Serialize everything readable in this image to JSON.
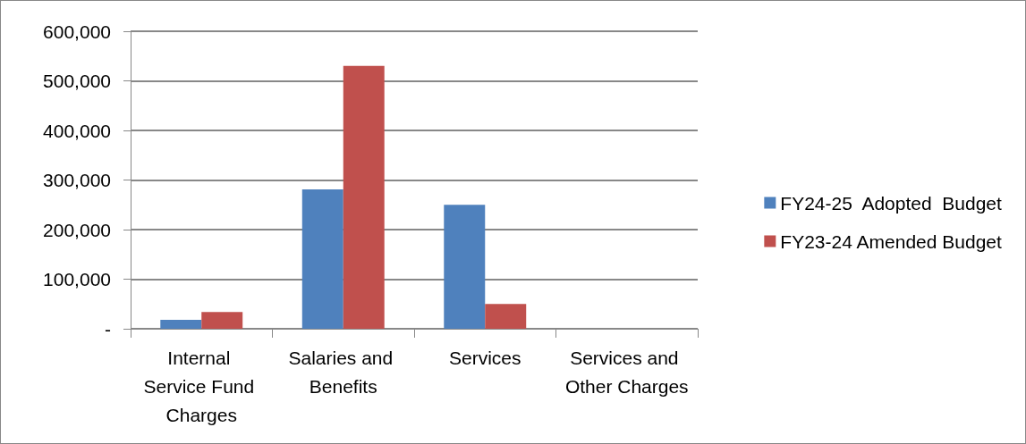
{
  "chart_data": {
    "type": "bar",
    "categories": [
      "Internal Service Fund Charges",
      "Salaries and Benefits",
      "Services",
      "Services and Other Charges"
    ],
    "series": [
      {
        "name": "FY24-25  Adopted  Budget",
        "color": "#4f81bd",
        "values": [
          18000,
          281000,
          250000,
          0
        ]
      },
      {
        "name": "FY23-24 Amended Budget",
        "color": "#c0504d",
        "values": [
          34000,
          530000,
          50000,
          0
        ]
      }
    ],
    "ylim": [
      0,
      600000
    ],
    "yticks": [
      {
        "value": 0,
        "label": "-"
      },
      {
        "value": 100000,
        "label": "100,000"
      },
      {
        "value": 200000,
        "label": "200,000"
      },
      {
        "value": 300000,
        "label": "300,000"
      },
      {
        "value": 400000,
        "label": "400,000"
      },
      {
        "value": 500000,
        "label": "500,000"
      },
      {
        "value": 600000,
        "label": "600,000"
      }
    ],
    "grid": "y",
    "legend": "right"
  }
}
